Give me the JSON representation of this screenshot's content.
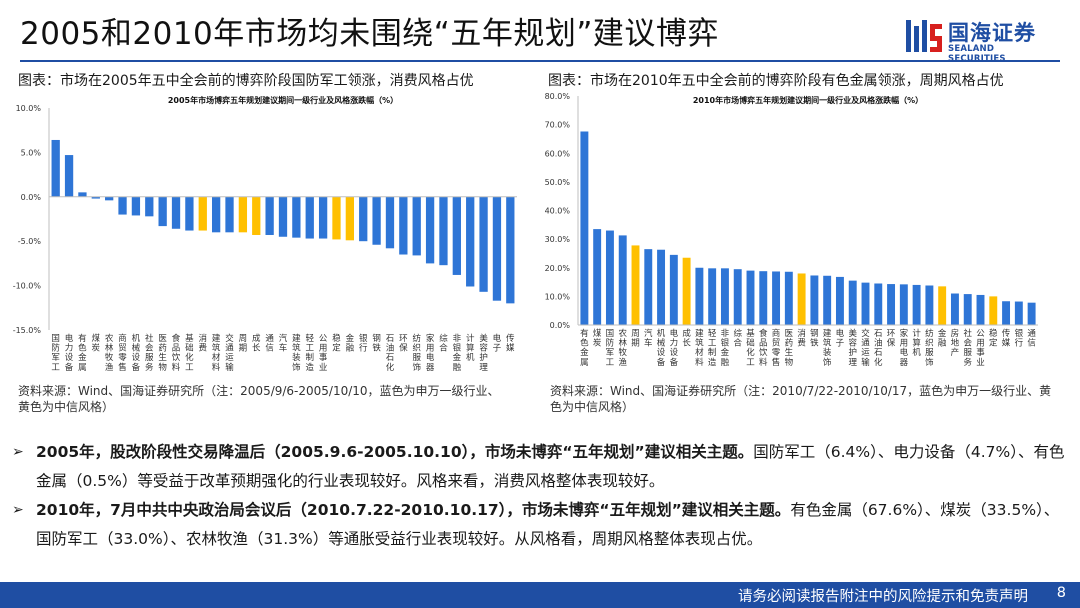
{
  "header": {
    "title": "2005和2010年市场均未围绕“五年规划”建议博弈",
    "logo_cn": "国海证券",
    "logo_en": "SEALAND SECURITIES",
    "brand_color": "#1f4ea3"
  },
  "colors": {
    "industry_bar": "#2e75d6",
    "style_bar": "#ffc000"
  },
  "left_panel": {
    "caption": "图表：市场在2005年五中全会前的博弈阶段国防军工领涨，消费风格占优",
    "source_line1": "资料来源：Wind、国海证券研究所（注：2005/9/6-2005/10/10，蓝色为申万一级行业、",
    "source_line2": "黄色为中信风格）"
  },
  "right_panel": {
    "caption": "图表：市场在2010年五中全会前的博弈阶段有色金属领涨，周期风格占优",
    "source_line1": "资料来源：Wind、国海证券研究所（注：2010/7/22-2010/10/17，蓝色为申万一级行业、黄",
    "source_line2": "色为中信风格）"
  },
  "chart_data": [
    {
      "type": "bar",
      "title": "2005年市场博弈五年规划建议期间一级行业及风格涨跌幅（%）",
      "ylim": [
        -15,
        10
      ],
      "yticks": [
        10,
        5,
        0,
        -5,
        -10,
        -15
      ],
      "ytick_labels": [
        "10.0%",
        "5.0%",
        "0.0%",
        "-5.0%",
        "-10.0%",
        "-15.0%"
      ],
      "categories": [
        "国防军工",
        "电力设备",
        "有色金属",
        "煤炭",
        "农林牧渔",
        "商贸零售",
        "机械设备",
        "社会服务",
        "医药生物",
        "食品饮料",
        "基础化工",
        "消费",
        "建筑材料",
        "交通运输",
        "周期",
        "成长",
        "通信",
        "汽车",
        "建筑装饰",
        "轻工制造",
        "公用事业",
        "稳定",
        "金融",
        "银行",
        "钢铁",
        "石油石化",
        "环保",
        "纺织服饰",
        "家用电器",
        "综合",
        "非银金融",
        "计算机",
        "美容护理",
        "电子",
        "传媒"
      ],
      "values": [
        6.4,
        4.7,
        0.5,
        -0.2,
        -0.4,
        -2.0,
        -2.1,
        -2.2,
        -3.3,
        -3.6,
        -3.8,
        -3.8,
        -4.0,
        -4.0,
        -4.0,
        -4.3,
        -4.3,
        -4.5,
        -4.6,
        -4.7,
        -4.7,
        -4.8,
        -4.9,
        -5.0,
        -5.4,
        -5.8,
        -6.5,
        -6.6,
        -7.5,
        -7.7,
        -8.8,
        -10.1,
        -10.7,
        -11.7,
        -12.0
      ],
      "styles": [
        "消费",
        "周期",
        "成长",
        "稳定",
        "金融"
      ]
    },
    {
      "type": "bar",
      "title": "2010年市场博弈五年规划建议期间一级行业及风格涨跌幅（%）",
      "ylim": [
        0,
        80
      ],
      "yticks": [
        80,
        70,
        60,
        50,
        40,
        30,
        20,
        10,
        0
      ],
      "ytick_labels": [
        "80.0%",
        "70.0%",
        "60.0%",
        "50.0%",
        "40.0%",
        "30.0%",
        "20.0%",
        "10.0%",
        "0.0%"
      ],
      "categories": [
        "有色金属",
        "煤炭",
        "国防军工",
        "农林牧渔",
        "周期",
        "汽车",
        "机械设备",
        "电力设备",
        "成长",
        "建筑材料",
        "轻工制造",
        "非银金融",
        "综合",
        "基础化工",
        "食品饮料",
        "商贸零售",
        "医药生物",
        "消费",
        "钢铁",
        "建筑装饰",
        "电子",
        "美容护理",
        "交通运输",
        "石油石化",
        "环保",
        "家用电器",
        "计算机",
        "纺织服饰",
        "金融",
        "房地产",
        "社会服务",
        "公用事业",
        "稳定",
        "传媒",
        "银行",
        "通信"
      ],
      "values": [
        67.6,
        33.5,
        33.0,
        31.3,
        27.8,
        26.5,
        26.3,
        24.5,
        23.5,
        20.0,
        19.8,
        19.8,
        19.5,
        19.0,
        18.8,
        18.7,
        18.6,
        18.0,
        17.3,
        17.2,
        16.8,
        15.5,
        14.8,
        14.5,
        14.3,
        14.2,
        14.0,
        13.8,
        13.5,
        11.0,
        10.8,
        10.5,
        10.0,
        8.3,
        8.2,
        7.8
      ],
      "styles": [
        "周期",
        "成长",
        "消费",
        "金融",
        "稳定"
      ]
    }
  ],
  "bullets": [
    {
      "bold": "2005年，股改阶段性交易降温后（2005.9.6-2005.10.10），市场未博弈“五年规划”建议相关主题。",
      "text": "国防军工（6.4%）、电力设备（4.7%）、有色金属（0.5%）等受益于改革预期强化的行业表现较好。风格来看，消费风格整体表现较好。"
    },
    {
      "bold": "2010年，7月中共中央政治局会议后（2010.7.22-2010.10.17），市场未博弈“五年规划”建议相关主题。",
      "text": "有色金属（67.6%）、煤炭（33.5%）、国防军工（33.0%）、农林牧渔（31.3%）等通胀受益行业表现较好。从风格看，周期风格整体表现占优。"
    }
  ],
  "footer": {
    "disclaimer": "请务必阅读报告附注中的风险提示和免责声明",
    "page": "8"
  }
}
